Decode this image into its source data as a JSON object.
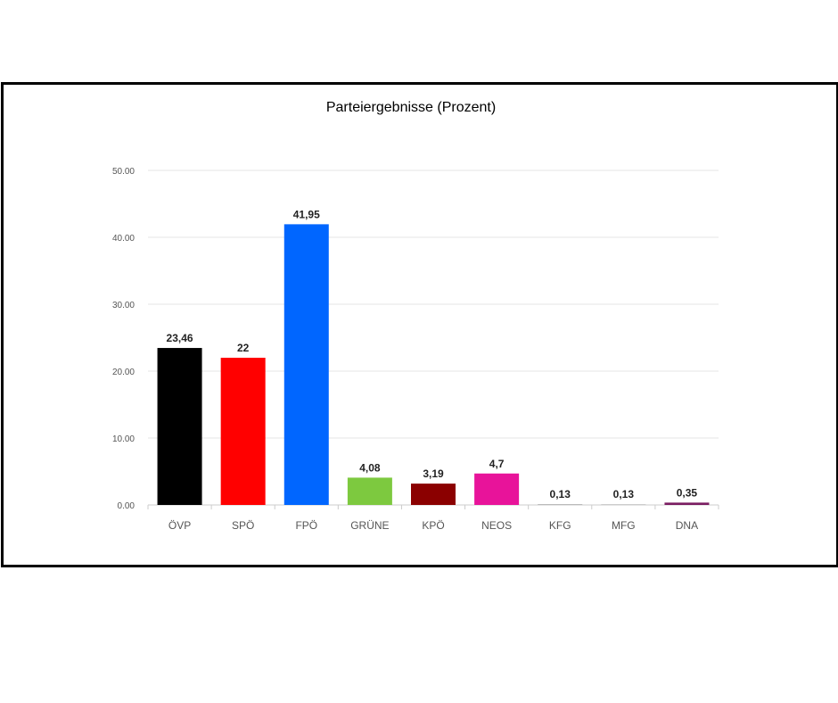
{
  "chart_data": {
    "type": "bar",
    "title": "Parteiergebnisse (Prozent)",
    "xlabel": "",
    "ylabel": "",
    "ylim": [
      0,
      50
    ],
    "yticks": [
      "0.00",
      "10.00",
      "20.00",
      "30.00",
      "40.00",
      "50.00"
    ],
    "grid": true,
    "categories": [
      "ÖVP",
      "SPÖ",
      "FPÖ",
      "GRÜNE",
      "KPÖ",
      "NEOS",
      "KFG",
      "MFG",
      "DNA"
    ],
    "values": [
      23.46,
      22,
      41.95,
      4.08,
      3.19,
      4.7,
      0.13,
      0.13,
      0.35
    ],
    "data_labels": [
      "23,46",
      "22",
      "41,95",
      "4,08",
      "3,19",
      "4,7",
      "0,13",
      "0,13",
      "0,35"
    ],
    "colors": [
      "#000000",
      "#ff0000",
      "#0066ff",
      "#7dc93f",
      "#8b0000",
      "#e8139a",
      "#bbbbbb",
      "#cccccc",
      "#7b1d62"
    ]
  }
}
